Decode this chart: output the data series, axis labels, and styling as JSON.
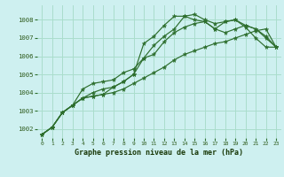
{
  "title": "Graphe pression niveau de la mer (hPa)",
  "background_color": "#cef0f0",
  "grid_color": "#aaddcc",
  "line_color": "#2d6e2d",
  "marker_color": "#2d6e2d",
  "ylim": [
    1001.5,
    1008.8
  ],
  "xlim": [
    -0.5,
    23.5
  ],
  "yticks": [
    1002,
    1003,
    1004,
    1005,
    1006,
    1007,
    1008
  ],
  "xticks": [
    0,
    1,
    2,
    3,
    4,
    5,
    6,
    7,
    8,
    9,
    10,
    11,
    12,
    13,
    14,
    15,
    16,
    17,
    18,
    19,
    20,
    21,
    22,
    23
  ],
  "series": [
    [
      1001.7,
      1002.1,
      1002.9,
      1003.3,
      1003.7,
      1003.8,
      1003.9,
      1004.3,
      1004.6,
      1005.0,
      1006.7,
      1007.1,
      1007.7,
      1008.2,
      1008.2,
      1008.0,
      1007.9,
      1007.5,
      1007.9,
      1008.0,
      1007.6,
      1007.0,
      1006.5,
      1006.5
    ],
    [
      1001.7,
      1002.1,
      1002.9,
      1003.3,
      1003.7,
      1004.0,
      1004.2,
      1004.3,
      1004.6,
      1005.0,
      1005.9,
      1006.6,
      1007.1,
      1007.5,
      1008.2,
      1008.3,
      1008.0,
      1007.8,
      1007.9,
      1008.0,
      1007.7,
      1007.5,
      1007.1,
      1006.5
    ],
    [
      1001.7,
      1002.1,
      1002.9,
      1003.3,
      1004.2,
      1004.5,
      1004.6,
      1004.7,
      1005.1,
      1005.3,
      1005.9,
      1006.1,
      1006.8,
      1007.3,
      1007.6,
      1007.8,
      1007.9,
      1007.5,
      1007.3,
      1007.5,
      1007.7,
      1007.5,
      1007.0,
      1006.5
    ],
    [
      1001.7,
      1002.1,
      1002.9,
      1003.3,
      1003.7,
      1003.8,
      1003.9,
      1004.0,
      1004.2,
      1004.5,
      1004.8,
      1005.1,
      1005.4,
      1005.8,
      1006.1,
      1006.3,
      1006.5,
      1006.7,
      1006.8,
      1007.0,
      1007.2,
      1007.4,
      1007.5,
      1006.5
    ]
  ]
}
